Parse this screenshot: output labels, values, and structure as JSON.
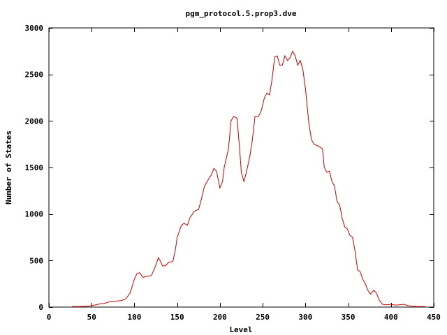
{
  "chart_data": {
    "type": "line",
    "title": "pgm_protocol.5.prop3.dve",
    "xlabel": "Level",
    "ylabel": "Number of States",
    "xlim": [
      0,
      450
    ],
    "ylim": [
      0,
      3000
    ],
    "xticks": [
      0,
      50,
      100,
      150,
      200,
      250,
      300,
      350,
      400,
      450
    ],
    "yticks": [
      0,
      500,
      1000,
      1500,
      2000,
      2500,
      3000
    ],
    "grid": false,
    "legend": "none",
    "line_color": "#cc0000",
    "series": [
      {
        "x": [
          27,
          35,
          45,
          50,
          55,
          60,
          65,
          70,
          75,
          80,
          85,
          90,
          95,
          100,
          103,
          106,
          110,
          115,
          120,
          125,
          128,
          130,
          133,
          137,
          140,
          145,
          148,
          150,
          155,
          158,
          162,
          165,
          170,
          175,
          178,
          182,
          187,
          190,
          193,
          196,
          200,
          203,
          205,
          210,
          213,
          216,
          220,
          223,
          225,
          228,
          231,
          235,
          238,
          241,
          245,
          248,
          252,
          255,
          258,
          261,
          264,
          267,
          270,
          273,
          276,
          279,
          282,
          285,
          288,
          291,
          294,
          297,
          300,
          304,
          307,
          310,
          315,
          320,
          322,
          325,
          328,
          331,
          334,
          337,
          340,
          343,
          346,
          349,
          352,
          355,
          358,
          361,
          364,
          367,
          370,
          373,
          376,
          380,
          383,
          386,
          390,
          395,
          400,
          405,
          410,
          415,
          420,
          425,
          430,
          440
        ],
        "y": [
          5,
          5,
          10,
          15,
          25,
          35,
          40,
          55,
          60,
          65,
          70,
          90,
          150,
          300,
          360,
          370,
          320,
          330,
          340,
          450,
          530,
          500,
          440,
          450,
          480,
          490,
          620,
          750,
          880,
          900,
          880,
          960,
          1030,
          1050,
          1150,
          1300,
          1380,
          1420,
          1490,
          1460,
          1280,
          1350,
          1500,
          1700,
          2000,
          2050,
          2030,
          1700,
          1450,
          1350,
          1450,
          1620,
          1800,
          2050,
          2050,
          2100,
          2250,
          2300,
          2280,
          2450,
          2690,
          2700,
          2600,
          2600,
          2700,
          2650,
          2680,
          2750,
          2700,
          2600,
          2650,
          2550,
          2350,
          1980,
          1800,
          1750,
          1730,
          1700,
          1500,
          1450,
          1460,
          1350,
          1300,
          1130,
          1100,
          950,
          860,
          840,
          770,
          750,
          600,
          400,
          380,
          300,
          250,
          180,
          140,
          180,
          150,
          80,
          30,
          25,
          30,
          20,
          25,
          30,
          15,
          10,
          5,
          5
        ]
      }
    ]
  }
}
